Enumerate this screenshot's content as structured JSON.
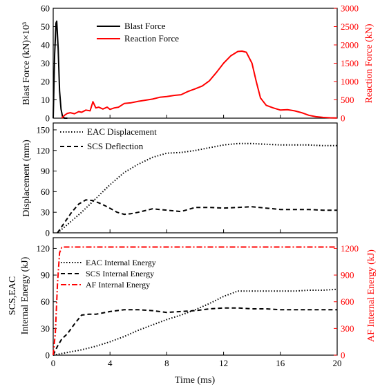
{
  "chart_data": [
    {
      "type": "line",
      "panel": "top",
      "xlim": [
        0,
        20
      ],
      "ylim_left": [
        0,
        60
      ],
      "ylim_right": [
        0,
        3000
      ],
      "ylabel_left": "Blast Force (kN)×10³",
      "ylabel_right": "Reaction Force (kN)",
      "yticks_left": [
        "0",
        "10",
        "20",
        "30",
        "40",
        "50",
        "60"
      ],
      "yticks_right": [
        "0",
        "500",
        "1000",
        "1500",
        "2000",
        "2500",
        "3000"
      ],
      "legend_position": "top-center",
      "series": [
        {
          "name": "Blast Force",
          "axis": "left",
          "color": "#000000",
          "style": "solid",
          "x": [
            0,
            0.1,
            0.2,
            0.25,
            0.35,
            0.45,
            0.55,
            0.65,
            0.8,
            1.0
          ],
          "y": [
            0,
            35,
            52,
            53,
            38,
            15,
            5,
            1,
            0,
            0
          ]
        },
        {
          "name": "Reaction Force",
          "axis": "right",
          "color": "#ff0000",
          "style": "solid",
          "x": [
            0.6,
            0.8,
            1.0,
            1.2,
            1.5,
            1.8,
            2.0,
            2.3,
            2.6,
            2.8,
            3.0,
            3.2,
            3.5,
            3.8,
            4.0,
            4.3,
            4.6,
            5.0,
            5.5,
            6.0,
            6.5,
            7.0,
            7.5,
            8.0,
            8.5,
            9.0,
            9.5,
            10.0,
            10.5,
            11.0,
            11.5,
            12.0,
            12.5,
            13.0,
            13.3,
            13.6,
            14.0,
            14.3,
            14.6,
            15.0,
            15.5,
            16.0,
            16.5,
            17.0,
            17.5,
            18.0,
            18.5,
            19.0,
            19.5,
            20.0
          ],
          "y": [
            0,
            80,
            130,
            150,
            120,
            180,
            160,
            220,
            200,
            450,
            280,
            300,
            250,
            300,
            240,
            280,
            300,
            400,
            420,
            460,
            490,
            520,
            570,
            590,
            620,
            640,
            730,
            800,
            880,
            1020,
            1250,
            1500,
            1700,
            1820,
            1830,
            1800,
            1500,
            1000,
            550,
            350,
            280,
            220,
            230,
            200,
            150,
            80,
            40,
            20,
            10,
            5
          ]
        }
      ]
    },
    {
      "type": "line",
      "panel": "middle",
      "xlim": [
        0,
        20
      ],
      "ylim": [
        0,
        160
      ],
      "ylabel": "Displacement (mm)",
      "yticks": [
        "0",
        "30",
        "60",
        "90",
        "120",
        "150"
      ],
      "legend_position": "top-left",
      "series": [
        {
          "name": "EAC Displacement",
          "color": "#000000",
          "style": "dotted",
          "x": [
            0.3,
            1,
            2,
            3,
            4,
            5,
            6,
            7,
            8,
            9,
            10,
            11,
            12,
            13,
            14,
            15,
            16,
            17,
            18,
            19,
            20
          ],
          "y": [
            0,
            12,
            30,
            50,
            70,
            88,
            100,
            110,
            116,
            117,
            120,
            124,
            128,
            130,
            130,
            129,
            128,
            128,
            128,
            127,
            127
          ]
        },
        {
          "name": "SCS Deflection",
          "color": "#000000",
          "style": "dashed",
          "x": [
            0.3,
            0.8,
            1.3,
            1.8,
            2.3,
            2.8,
            3.3,
            3.8,
            4.5,
            5.0,
            5.5,
            6.0,
            7.0,
            8.0,
            9.0,
            10.0,
            11.0,
            12.0,
            13.0,
            14.0,
            15.0,
            16.0,
            17.0,
            18.0,
            19.0,
            20.0
          ],
          "y": [
            0,
            15,
            30,
            42,
            48,
            47,
            43,
            38,
            30,
            27,
            28,
            30,
            35,
            33,
            31,
            37,
            37,
            36,
            37,
            38,
            36,
            34,
            34,
            34,
            33,
            33
          ]
        }
      ]
    },
    {
      "type": "line",
      "panel": "bottom",
      "xlim": [
        0,
        20
      ],
      "ylim_left": [
        0,
        132
      ],
      "ylim_right": [
        0,
        1320
      ],
      "ylabel_left": [
        "SCS,EAC",
        "Internal Energy (kJ)"
      ],
      "ylabel_right": "AF Internal Energy (kJ)",
      "xlabel": "Time (ms)",
      "yticks_left": [
        "0",
        "30",
        "60",
        "90",
        "120"
      ],
      "yticks_right": [
        "0",
        "300",
        "600",
        "900",
        "1200"
      ],
      "xticks": [
        "0",
        "4",
        "8",
        "12",
        "16",
        "20"
      ],
      "legend_position": "top-left",
      "series": [
        {
          "name": "EAC Internal Energy",
          "axis": "left",
          "color": "#000000",
          "style": "dotted",
          "x": [
            0,
            1,
            2,
            3,
            4,
            5,
            6,
            7,
            8,
            9,
            10,
            11,
            12,
            13,
            14,
            15,
            16,
            17,
            18,
            19,
            20
          ],
          "y": [
            0,
            3,
            6,
            10,
            15,
            21,
            28,
            34,
            40,
            45,
            51,
            58,
            66,
            72,
            72,
            72,
            72,
            72,
            73,
            73,
            74
          ]
        },
        {
          "name": "SCS Internal Energy",
          "axis": "left",
          "color": "#000000",
          "style": "dashed",
          "x": [
            0,
            0.3,
            0.6,
            1.0,
            1.5,
            2.0,
            2.5,
            3.0,
            4.0,
            5.0,
            6.0,
            7.0,
            8.0,
            9.0,
            10.0,
            11.0,
            12.0,
            13.0,
            14.0,
            15.0,
            16.0,
            17.0,
            18.0,
            19.0,
            20.0
          ],
          "y": [
            0,
            10,
            18,
            24,
            35,
            45,
            46,
            46,
            49,
            51,
            51,
            50,
            48,
            49,
            50,
            52,
            53,
            53,
            52,
            52,
            51,
            51,
            51,
            51,
            51
          ]
        },
        {
          "name": "AF Internal Energy",
          "axis": "right",
          "color": "#ff0000",
          "style": "dashdot",
          "x": [
            0,
            0.15,
            0.3,
            0.45,
            0.6,
            0.75,
            1.0,
            2.0,
            5.0,
            10.0,
            15.0,
            20.0
          ],
          "y": [
            0,
            250,
            800,
            1150,
            1210,
            1215,
            1215,
            1215,
            1215,
            1215,
            1215,
            1215
          ]
        }
      ]
    }
  ]
}
